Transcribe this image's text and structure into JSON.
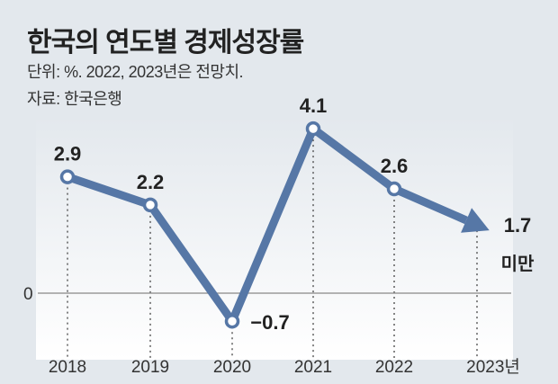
{
  "chart_data": {
    "type": "line",
    "title": "한국의 연도별 경제성장률",
    "subtitle": "단위: %. 2022, 2023년은 전망치.",
    "source": "자료: 한국은행",
    "categories": [
      "2018",
      "2019",
      "2020",
      "2021",
      "2022",
      "2023년"
    ],
    "values": [
      2.9,
      2.2,
      -0.7,
      4.1,
      2.6,
      1.7
    ],
    "data_labels": [
      "2.9",
      "2.2",
      "−0.7",
      "4.1",
      "2.6",
      "1.7"
    ],
    "last_label_note": "미만",
    "y_tick": "0",
    "ylim": [
      -1.0,
      5.0
    ],
    "line_color": "#5677a6",
    "grid": "dotted vertical"
  }
}
